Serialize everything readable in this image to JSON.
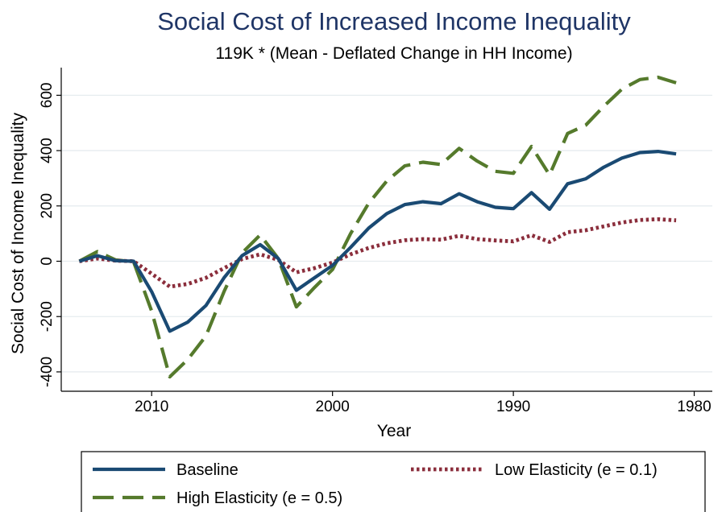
{
  "chart_data": {
    "type": "line",
    "title": "Social Cost of Increased Income Inequality",
    "subtitle": "119K * (Mean - Deflated Change in HH Income)",
    "xlabel": "Year",
    "ylabel": "Social Cost of Income Inequality",
    "xlim": [
      2015,
      1979
    ],
    "ylim": [
      -470,
      700
    ],
    "x_reversed": true,
    "x_ticks": [
      2010,
      2000,
      1990,
      1980
    ],
    "y_ticks": [
      -400,
      -200,
      0,
      200,
      400,
      600
    ],
    "grid": true,
    "legend_position": "bottom",
    "x": [
      2014,
      2013,
      2012,
      2011,
      2010,
      2009,
      2008,
      2007,
      2006,
      2005,
      2004,
      2003,
      2002,
      2001,
      2000,
      1999,
      1998,
      1997,
      1996,
      1995,
      1994,
      1993,
      1992,
      1991,
      1990,
      1989,
      1988,
      1987,
      1986,
      1985,
      1984,
      1983,
      1982,
      1981,
      1980,
      1979
    ],
    "series": [
      {
        "name": "Baseline",
        "color": "#1a4a73",
        "dash": "solid",
        "values": [
          0,
          20,
          2,
          0,
          -110,
          -253,
          -220,
          -160,
          -60,
          20,
          60,
          10,
          -105,
          -60,
          -15,
          50,
          120,
          172,
          205,
          215,
          208,
          244,
          215,
          195,
          190,
          248,
          188,
          280,
          298,
          340,
          373,
          393,
          397,
          388,
          null,
          null
        ]
      },
      {
        "name": "High Elasticity (e = 0.5)",
        "color": "#557a2c",
        "dash": "dashed",
        "values": [
          0,
          35,
          5,
          -2,
          -180,
          -418,
          -355,
          -270,
          -110,
          30,
          95,
          10,
          -165,
          -95,
          -30,
          100,
          210,
          290,
          345,
          358,
          350,
          408,
          362,
          325,
          318,
          415,
          312,
          462,
          492,
          560,
          622,
          657,
          665,
          645,
          null,
          null
        ]
      },
      {
        "name": "Low Elasticity (e = 0.1)",
        "color": "#8b2e3c",
        "dash": "dotted",
        "values": [
          0,
          10,
          2,
          0,
          -45,
          -92,
          -82,
          -60,
          -25,
          8,
          25,
          5,
          -40,
          -25,
          -5,
          25,
          48,
          65,
          76,
          80,
          78,
          92,
          80,
          75,
          72,
          94,
          70,
          105,
          112,
          126,
          140,
          149,
          152,
          148,
          null,
          null
        ]
      }
    ]
  }
}
